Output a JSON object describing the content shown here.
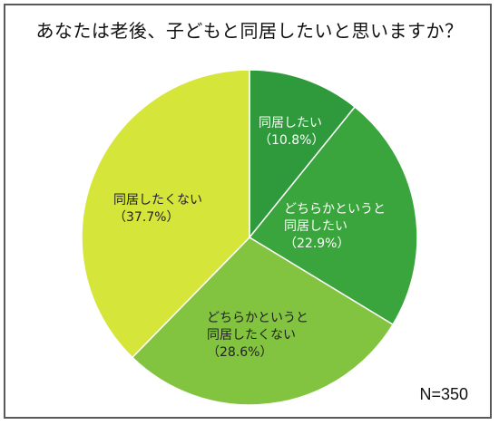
{
  "title": "あなたは老後、子どもと同居したいと思いますか？",
  "note": "N=350",
  "colors": {
    "dark_green": "#2e9a3c",
    "mid_green": "#3aa53c",
    "light_green": "#82c43f",
    "yellow_green": "#d6e53a",
    "label_light": "#ffffff",
    "label_dark": "#222222",
    "border": "#5a5a5a"
  },
  "chart_data": {
    "type": "pie",
    "title": "あなたは老後、子どもと同居したいと思いますか？",
    "start": "12 o'clock",
    "direction": "clockwise",
    "slices": [
      {
        "lines": [
          "同居したい",
          "（10.8%）"
        ],
        "value": 10.8,
        "color": "#2e9a3c",
        "text_color": "#ffffff"
      },
      {
        "lines": [
          "どちらかというと",
          "同居したい",
          "（22.9%）"
        ],
        "value": 22.9,
        "color": "#3aa53c",
        "text_color": "#ffffff"
      },
      {
        "lines": [
          "どちらかというと",
          "同居したくない",
          "（28.6%）"
        ],
        "value": 28.6,
        "color": "#82c43f",
        "text_color": "#222222"
      },
      {
        "lines": [
          "同居したくない",
          "（37.7%）"
        ],
        "value": 37.7,
        "color": "#d6e53a",
        "text_color": "#222222"
      }
    ],
    "n": "N=350"
  }
}
